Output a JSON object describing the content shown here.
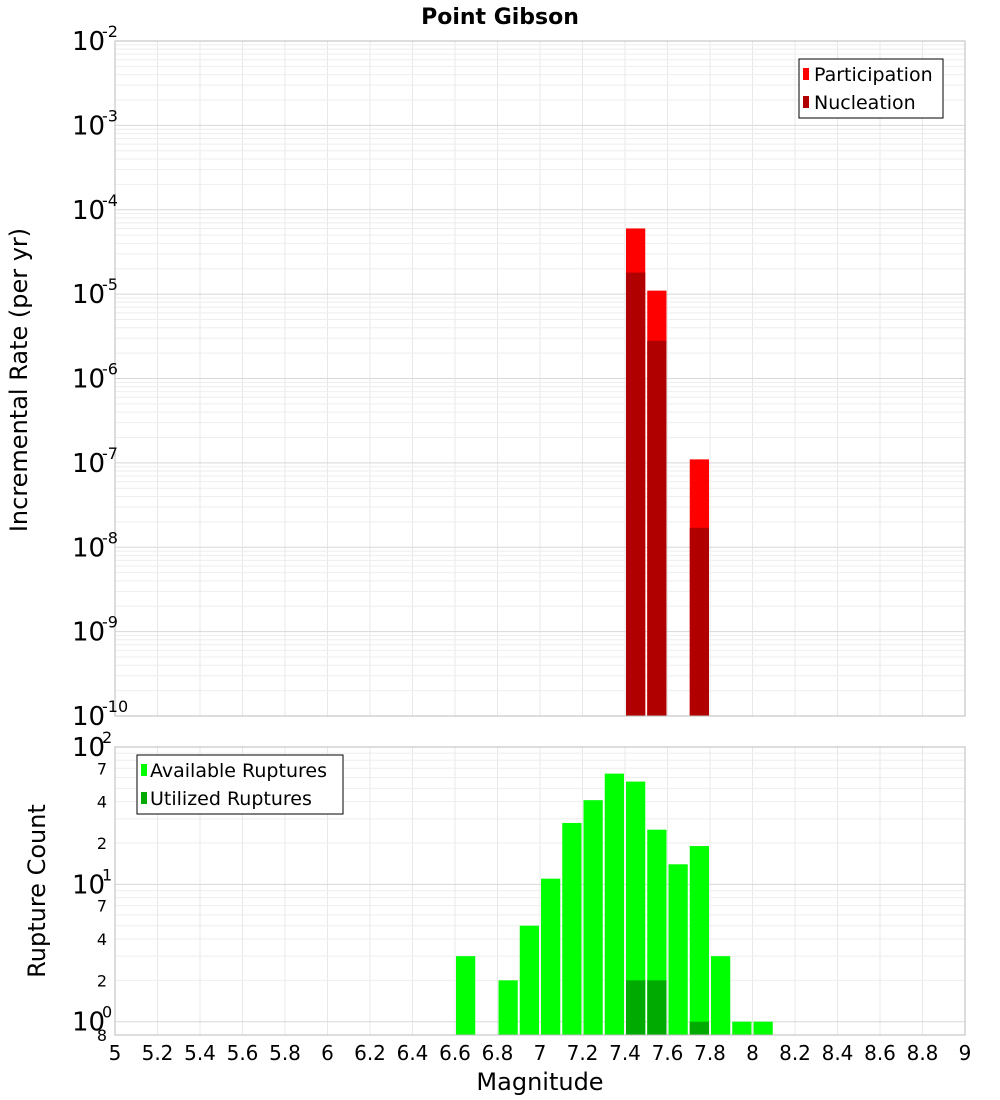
{
  "chart_data": [
    {
      "type": "bar",
      "title": "Point Gibson",
      "ylabel": "Incremental Rate (per yr)",
      "yscale": "log",
      "ylim": [
        1e-10,
        0.01
      ],
      "xlim": [
        5,
        9
      ],
      "bar_width": 0.1,
      "grid": true,
      "legend_position": "top-right",
      "series": [
        {
          "name": "Participation",
          "color": "#ff0000",
          "x": [
            7.45,
            7.55,
            7.75
          ],
          "values": [
            6e-05,
            1.1e-05,
            1.1e-07
          ]
        },
        {
          "name": "Nucleation",
          "color": "#b00000",
          "x": [
            7.45,
            7.55,
            7.75
          ],
          "values": [
            1.8e-05,
            2.8e-06,
            1.7e-08
          ]
        }
      ],
      "y_ticks": [
        {
          "base": "10",
          "exp": "-10"
        },
        {
          "base": "10",
          "exp": "-9"
        },
        {
          "base": "10",
          "exp": "-8"
        },
        {
          "base": "10",
          "exp": "-7"
        },
        {
          "base": "10",
          "exp": "-6"
        },
        {
          "base": "10",
          "exp": "-5"
        },
        {
          "base": "10",
          "exp": "-4"
        },
        {
          "base": "10",
          "exp": "-3"
        },
        {
          "base": "10",
          "exp": "-2"
        }
      ]
    },
    {
      "type": "bar",
      "xlabel": "Magnitude",
      "ylabel": "Rupture Count",
      "yscale": "log",
      "ylim": [
        0.8,
        100
      ],
      "xlim": [
        5,
        9
      ],
      "bar_width": 0.1,
      "grid": true,
      "legend_position": "top-left",
      "series": [
        {
          "name": "Available Ruptures",
          "color": "#00ff00",
          "x": [
            6.65,
            6.85,
            6.95,
            7.05,
            7.15,
            7.25,
            7.35,
            7.45,
            7.55,
            7.65,
            7.75,
            7.85,
            7.95,
            8.05
          ],
          "values": [
            3,
            2,
            5,
            11,
            28,
            41,
            64,
            56,
            25,
            14,
            19,
            3,
            1,
            1
          ]
        },
        {
          "name": "Utilized Ruptures",
          "color": "#00aa00",
          "x": [
            7.45,
            7.55,
            7.75
          ],
          "values": [
            2,
            2,
            1
          ]
        }
      ],
      "x_ticks": [
        "5",
        "5.2",
        "5.4",
        "5.6",
        "5.8",
        "6",
        "6.2",
        "6.4",
        "6.6",
        "6.8",
        "7",
        "7.2",
        "7.4",
        "7.6",
        "7.8",
        "8",
        "8.2",
        "8.4",
        "8.6",
        "8.8",
        "9"
      ],
      "y_major_ticks": [
        {
          "base": "10",
          "exp": "0",
          "value": 1
        },
        {
          "base": "10",
          "exp": "1",
          "value": 10
        },
        {
          "base": "10",
          "exp": "2",
          "value": 100
        }
      ],
      "y_minor_ticks": [
        {
          "label": "8",
          "value": 0.8
        },
        {
          "label": "2",
          "value": 2
        },
        {
          "label": "4",
          "value": 4
        },
        {
          "label": "7",
          "value": 7
        },
        {
          "label": "2",
          "value": 20
        },
        {
          "label": "4",
          "value": 40
        },
        {
          "label": "7",
          "value": 70
        }
      ]
    }
  ]
}
